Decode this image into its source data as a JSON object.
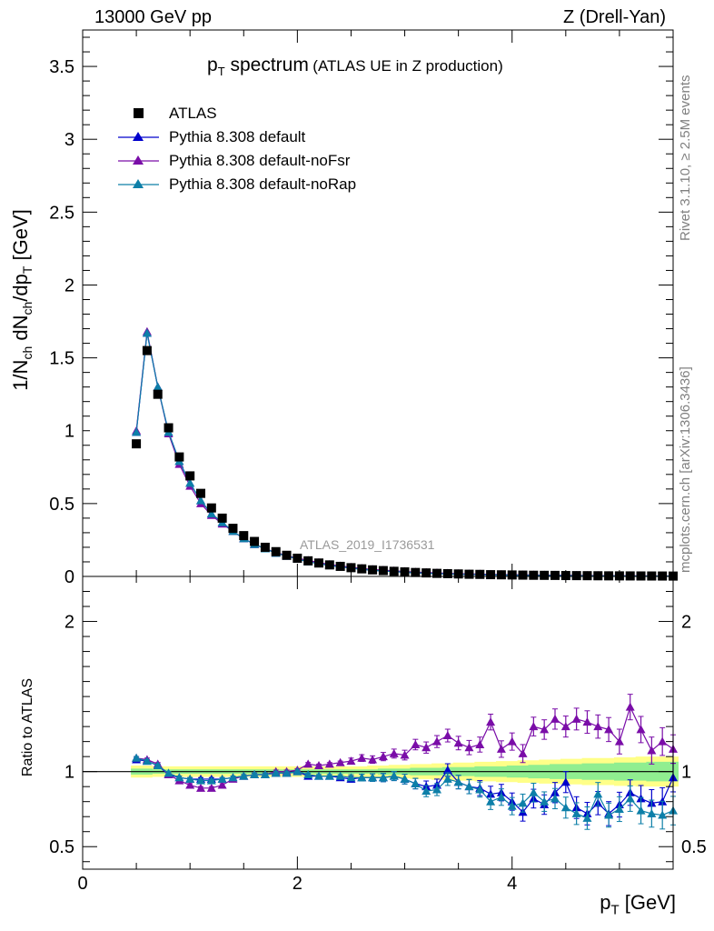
{
  "header": {
    "left": "13000 GeV pp",
    "right": "Z (Drell-Yan)"
  },
  "title": {
    "main": "spectrum",
    "sub": "(ATLAS UE in Z production)"
  },
  "side_labels": {
    "rivet": "Rivet 3.1.10, ≥ 2.5M events",
    "mcplots": "mcplots.cern.ch [arXiv:1306.3436]"
  },
  "analysis_id": "ATLAS_2019_I1736531",
  "ylabel_bottom": "Ratio to ATLAS",
  "colors": {
    "atlas": "#000000",
    "default": "#0000cc",
    "noFsr": "#7a0da8",
    "noRap": "#0d7fa8",
    "band_outer": "#ffff88",
    "band_inner": "#90ee90"
  },
  "chart_data": [
    {
      "type": "scatter",
      "panel": "main",
      "ylabel": "1/N_ch dN_ch/dp_T [GeV]",
      "xlim": [
        0,
        5.5
      ],
      "ylim": [
        0,
        3.75
      ],
      "yticks": [
        0,
        0.5,
        1,
        1.5,
        2,
        2.5,
        3,
        3.5
      ],
      "xticks": [
        0,
        2,
        4
      ],
      "x": [
        0.5,
        0.6,
        0.7,
        0.8,
        0.9,
        1.0,
        1.1,
        1.2,
        1.3,
        1.4,
        1.5,
        1.6,
        1.7,
        1.8,
        1.9,
        2.0,
        2.1,
        2.2,
        2.3,
        2.4,
        2.5,
        2.6,
        2.7,
        2.8,
        2.9,
        3.0,
        3.1,
        3.2,
        3.3,
        3.4,
        3.5,
        3.6,
        3.7,
        3.8,
        3.9,
        4.0,
        4.1,
        4.2,
        4.3,
        4.4,
        4.5,
        4.6,
        4.7,
        4.8,
        4.9,
        5.0,
        5.1,
        5.2,
        5.3,
        5.4,
        5.5
      ],
      "series": [
        {
          "name": "ATLAS",
          "marker": "square",
          "values": [
            0.91,
            1.55,
            1.25,
            1.02,
            0.82,
            0.69,
            0.57,
            0.47,
            0.4,
            0.33,
            0.28,
            0.24,
            0.2,
            0.17,
            0.145,
            0.125,
            0.107,
            0.092,
            0.079,
            0.069,
            0.06,
            0.052,
            0.045,
            0.04,
            0.035,
            0.031,
            0.027,
            0.024,
            0.021,
            0.019,
            0.017,
            0.015,
            0.014,
            0.012,
            0.011,
            0.01,
            0.009,
            0.008,
            0.0075,
            0.007,
            0.006,
            0.0055,
            0.005,
            0.0045,
            0.004,
            0.0038,
            0.0035,
            0.0032,
            0.003,
            0.0028,
            0.0025
          ]
        },
        {
          "name": "Pythia 8.308 default",
          "marker": "triangle",
          "values": [
            0.99,
            1.67,
            1.3,
            0.99,
            0.79,
            0.64,
            0.52,
            0.43,
            0.37,
            0.31,
            0.26,
            0.22,
            0.19,
            0.16,
            0.14,
            0.12,
            0.1,
            0.088,
            0.075,
            0.066,
            0.057,
            0.049,
            0.042,
            0.037,
            0.033,
            0.029,
            0.025,
            0.022,
            0.019,
            0.017,
            0.015,
            0.013,
            0.012,
            0.01,
            0.0095,
            0.0085,
            0.0075,
            0.0068,
            0.006,
            0.0055,
            0.005,
            0.0045,
            0.004,
            0.0036,
            0.0033,
            0.003,
            0.0028,
            0.0026,
            0.0024,
            0.0022,
            0.002
          ]
        },
        {
          "name": "Pythia 8.308 default-noFsr",
          "marker": "triangle",
          "values": [
            1.0,
            1.68,
            1.3,
            0.98,
            0.77,
            0.62,
            0.5,
            0.42,
            0.36,
            0.31,
            0.26,
            0.22,
            0.19,
            0.165,
            0.142,
            0.125,
            0.11,
            0.095,
            0.082,
            0.072,
            0.063,
            0.055,
            0.048,
            0.043,
            0.038,
            0.034,
            0.03,
            0.027,
            0.024,
            0.021,
            0.019,
            0.017,
            0.016,
            0.014,
            0.013,
            0.012,
            0.011,
            0.0098,
            0.009,
            0.0085,
            0.0076,
            0.007,
            0.0065,
            0.006,
            0.0052,
            0.0048,
            0.0045,
            0.0041,
            0.0038,
            0.0034,
            0.0031
          ]
        },
        {
          "name": "Pythia 8.308 default-noRap",
          "marker": "triangle",
          "values": [
            0.99,
            1.67,
            1.3,
            0.99,
            0.79,
            0.64,
            0.52,
            0.43,
            0.37,
            0.31,
            0.26,
            0.22,
            0.19,
            0.16,
            0.14,
            0.12,
            0.1,
            0.088,
            0.075,
            0.066,
            0.057,
            0.049,
            0.042,
            0.037,
            0.033,
            0.029,
            0.025,
            0.022,
            0.019,
            0.017,
            0.015,
            0.013,
            0.012,
            0.01,
            0.0095,
            0.0085,
            0.0075,
            0.0068,
            0.006,
            0.0055,
            0.005,
            0.0045,
            0.004,
            0.0036,
            0.0033,
            0.003,
            0.0028,
            0.0026,
            0.0024,
            0.0022,
            0.002
          ]
        }
      ]
    },
    {
      "type": "line",
      "panel": "ratio",
      "ylabel": "Ratio to ATLAS",
      "xlabel": "p_T [GeV]",
      "xlim": [
        0,
        5.5
      ],
      "ylim": [
        0.35,
        2.3
      ],
      "yticks": [
        0.5,
        1,
        2
      ],
      "x": [
        0.5,
        0.6,
        0.7,
        0.8,
        0.9,
        1.0,
        1.1,
        1.2,
        1.3,
        1.4,
        1.5,
        1.6,
        1.7,
        1.8,
        1.9,
        2.0,
        2.1,
        2.2,
        2.3,
        2.4,
        2.5,
        2.6,
        2.7,
        2.8,
        2.9,
        3.0,
        3.1,
        3.2,
        3.3,
        3.4,
        3.5,
        3.6,
        3.7,
        3.8,
        3.9,
        4.0,
        4.1,
        4.2,
        4.3,
        4.4,
        4.5,
        4.6,
        4.7,
        4.8,
        4.9,
        5.0,
        5.1,
        5.2,
        5.3,
        5.4,
        5.5
      ],
      "band_inner": [
        0.02,
        0.02,
        0.015,
        0.015,
        0.015,
        0.015,
        0.015,
        0.015,
        0.015,
        0.015,
        0.015,
        0.015,
        0.015,
        0.015,
        0.015,
        0.015,
        0.015,
        0.015,
        0.015,
        0.015,
        0.015,
        0.015,
        0.015,
        0.02,
        0.02,
        0.02,
        0.025,
        0.025,
        0.025,
        0.03,
        0.03,
        0.03,
        0.035,
        0.035,
        0.035,
        0.04,
        0.04,
        0.045,
        0.045,
        0.05,
        0.05,
        0.05,
        0.055,
        0.055,
        0.055,
        0.06,
        0.06,
        0.06,
        0.065,
        0.065,
        0.065
      ],
      "band_outer": [
        0.04,
        0.04,
        0.035,
        0.035,
        0.035,
        0.035,
        0.035,
        0.035,
        0.035,
        0.035,
        0.035,
        0.035,
        0.035,
        0.035,
        0.035,
        0.035,
        0.035,
        0.035,
        0.035,
        0.035,
        0.035,
        0.035,
        0.04,
        0.04,
        0.045,
        0.045,
        0.05,
        0.05,
        0.055,
        0.055,
        0.06,
        0.06,
        0.065,
        0.065,
        0.07,
        0.07,
        0.075,
        0.075,
        0.08,
        0.08,
        0.085,
        0.085,
        0.09,
        0.09,
        0.09,
        0.095,
        0.095,
        0.1,
        0.1,
        0.1,
        0.1
      ],
      "series": [
        {
          "name": "Pythia 8.308 default",
          "values": [
            1.08,
            1.07,
            1.04,
            0.98,
            0.96,
            0.95,
            0.95,
            0.95,
            0.95,
            0.96,
            0.97,
            0.98,
            0.98,
            0.99,
            0.99,
            1.0,
            0.97,
            0.97,
            0.97,
            0.96,
            0.95,
            0.96,
            0.96,
            0.96,
            0.97,
            0.95,
            0.92,
            0.9,
            0.91,
            1.01,
            0.93,
            0.9,
            0.89,
            0.85,
            0.86,
            0.8,
            0.73,
            0.82,
            0.78,
            0.86,
            0.93,
            0.76,
            0.72,
            0.79,
            0.72,
            0.78,
            0.86,
            0.82,
            0.79,
            0.8,
            0.96
          ]
        },
        {
          "name": "Pythia 8.308 default-noFsr",
          "values": [
            1.09,
            1.08,
            1.05,
            0.98,
            0.94,
            0.91,
            0.89,
            0.89,
            0.91,
            0.95,
            0.97,
            0.98,
            0.98,
            1.0,
            1.0,
            1.01,
            1.05,
            1.04,
            1.05,
            1.06,
            1.07,
            1.09,
            1.08,
            1.1,
            1.12,
            1.11,
            1.18,
            1.16,
            1.2,
            1.24,
            1.19,
            1.16,
            1.18,
            1.33,
            1.15,
            1.2,
            1.12,
            1.3,
            1.28,
            1.35,
            1.3,
            1.35,
            1.33,
            1.3,
            1.28,
            1.2,
            1.43,
            1.28,
            1.14,
            1.2,
            1.15
          ]
        },
        {
          "name": "Pythia 8.308 default-noRap",
          "values": [
            1.09,
            1.07,
            1.04,
            0.99,
            0.96,
            0.95,
            0.94,
            0.94,
            0.95,
            0.96,
            0.97,
            0.98,
            0.98,
            0.99,
            0.99,
            1.0,
            0.98,
            0.97,
            0.97,
            0.97,
            0.96,
            0.96,
            0.96,
            0.96,
            0.97,
            0.95,
            0.92,
            0.87,
            0.88,
            0.95,
            0.93,
            0.9,
            0.88,
            0.8,
            0.83,
            0.77,
            0.79,
            0.86,
            0.8,
            0.82,
            0.76,
            0.72,
            0.69,
            0.85,
            0.71,
            0.75,
            0.82,
            0.74,
            0.72,
            0.71,
            0.74
          ]
        }
      ]
    }
  ]
}
